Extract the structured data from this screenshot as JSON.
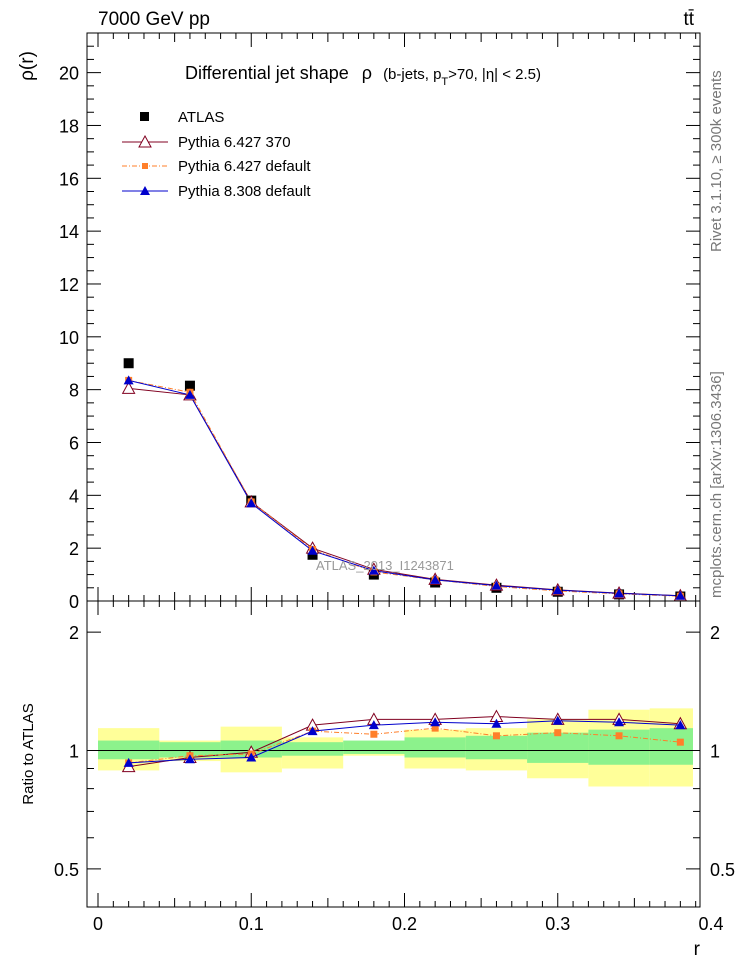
{
  "header": {
    "energy_label": "7000 GeV pp",
    "process_label": "tt̄"
  },
  "side_labels": {
    "rivet": "Rivet 3.1.10, ≥ 300k events",
    "mcplots": "mcplots.cern.ch [arXiv:1306.3436]"
  },
  "chart_data": {
    "type": "scatter",
    "title": "Differential jet shape",
    "title_rho": "ρ",
    "title_paren": "(b-jets, p",
    "title_sub": "T",
    "title_tail": ">70, |η| < 2.5)",
    "watermark": "ATLAS_2013_I1243871",
    "xlabel": "r",
    "ylabel_main": "ρ(r)",
    "ylabel_ratio": "Ratio to ATLAS",
    "xlim": [
      0,
      0.4
    ],
    "ylim_main": [
      0,
      21.5
    ],
    "ylim_ratio": [
      0.4,
      2.4
    ],
    "ratio_log_scale": true,
    "x_ticks": [
      "0",
      "0.1",
      "0.2",
      "0.3",
      "0.4"
    ],
    "y_ticks_main": [
      "0",
      "2",
      "4",
      "6",
      "8",
      "10",
      "12",
      "14",
      "16",
      "18",
      "20"
    ],
    "y_ticks_ratio": [
      "0.5",
      "1",
      "2"
    ],
    "x": [
      0.02,
      0.06,
      0.1,
      0.14,
      0.18,
      0.22,
      0.26,
      0.3,
      0.34,
      0.38
    ],
    "bin_edges": [
      0,
      0.04,
      0.08,
      0.12,
      0.16,
      0.2,
      0.24,
      0.28,
      0.32,
      0.36,
      0.4
    ],
    "legend_position": "top-left",
    "series": [
      {
        "name": "ATLAS",
        "values": [
          9.0,
          8.15,
          3.8,
          1.75,
          1.0,
          0.7,
          0.5,
          0.35,
          0.25,
          0.17
        ],
        "color": "#000000",
        "marker": "square"
      },
      {
        "name": "Pythia 6.427 370",
        "values": [
          8.05,
          7.8,
          3.75,
          2.0,
          1.2,
          0.82,
          0.6,
          0.42,
          0.3,
          0.2
        ],
        "color": "#800020",
        "marker": "open-triangle"
      },
      {
        "name": "Pythia 6.427 default",
        "values": [
          8.35,
          7.9,
          3.75,
          1.95,
          1.1,
          0.8,
          0.55,
          0.38,
          0.27,
          0.18
        ],
        "color": "#ff7f2a",
        "marker": "square-small"
      },
      {
        "name": "Pythia 8.308 default",
        "values": [
          8.35,
          7.8,
          3.7,
          1.9,
          1.15,
          0.8,
          0.58,
          0.41,
          0.29,
          0.2
        ],
        "color": "#0000cc",
        "marker": "filled-triangle"
      }
    ],
    "ratios": {
      "Pythia 6.427 370": [
        0.91,
        0.96,
        0.99,
        1.16,
        1.2,
        1.2,
        1.22,
        1.2,
        1.2,
        1.17
      ],
      "Pythia 6.427 default": [
        0.93,
        0.97,
        0.98,
        1.12,
        1.1,
        1.14,
        1.09,
        1.11,
        1.09,
        1.05
      ],
      "Pythia 8.308 default": [
        0.93,
        0.95,
        0.96,
        1.12,
        1.16,
        1.18,
        1.17,
        1.19,
        1.18,
        1.16
      ]
    },
    "band_stat_ratio": [
      [
        0.95,
        1.06
      ],
      [
        0.96,
        1.05
      ],
      [
        0.96,
        1.06
      ],
      [
        0.97,
        1.05
      ],
      [
        0.98,
        1.06
      ],
      [
        0.96,
        1.08
      ],
      [
        0.95,
        1.09
      ],
      [
        0.93,
        1.11
      ],
      [
        0.92,
        1.13
      ],
      [
        0.92,
        1.14
      ]
    ],
    "band_total_ratio": [
      [
        0.89,
        1.14
      ],
      [
        0.94,
        1.06
      ],
      [
        0.88,
        1.15
      ],
      [
        0.9,
        1.08
      ],
      [
        0.97,
        1.04
      ],
      [
        0.9,
        1.13
      ],
      [
        0.89,
        1.14
      ],
      [
        0.85,
        1.2
      ],
      [
        0.81,
        1.27
      ],
      [
        0.81,
        1.28
      ]
    ],
    "colors": {
      "band_total": "#ffff99",
      "band_stat": "#8cf28c"
    }
  }
}
